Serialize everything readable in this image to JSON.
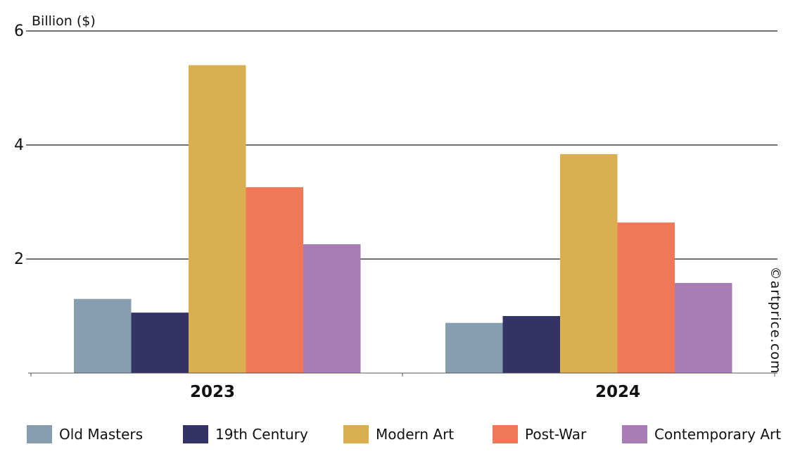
{
  "chart_data": {
    "type": "bar",
    "title": "",
    "xlabel": "",
    "ylabel": "Billion ($)",
    "categories": [
      "2023",
      "2024"
    ],
    "ylim": [
      0,
      6
    ],
    "yticks": [
      {
        "value": 2,
        "label": "2"
      },
      {
        "value": 4,
        "label": "4"
      },
      {
        "value": 6,
        "label": "6"
      }
    ],
    "grid": true,
    "legend": "bottom",
    "series": [
      {
        "name": "Old Masters",
        "color": "#879EB0",
        "values": [
          1.3,
          0.88
        ]
      },
      {
        "name": "19th Century",
        "color": "#333366",
        "values": [
          1.06,
          1.0
        ]
      },
      {
        "name": "Modern Art",
        "color": "#D9AF4F",
        "values": [
          5.4,
          3.84
        ]
      },
      {
        "name": "Post-War",
        "color": "#EE7857",
        "values": [
          3.26,
          2.64
        ]
      },
      {
        "name": "Contemporary Art",
        "color": "#A87DB6",
        "values": [
          2.26,
          1.58
        ]
      }
    ],
    "watermark": "©artprice.com"
  }
}
